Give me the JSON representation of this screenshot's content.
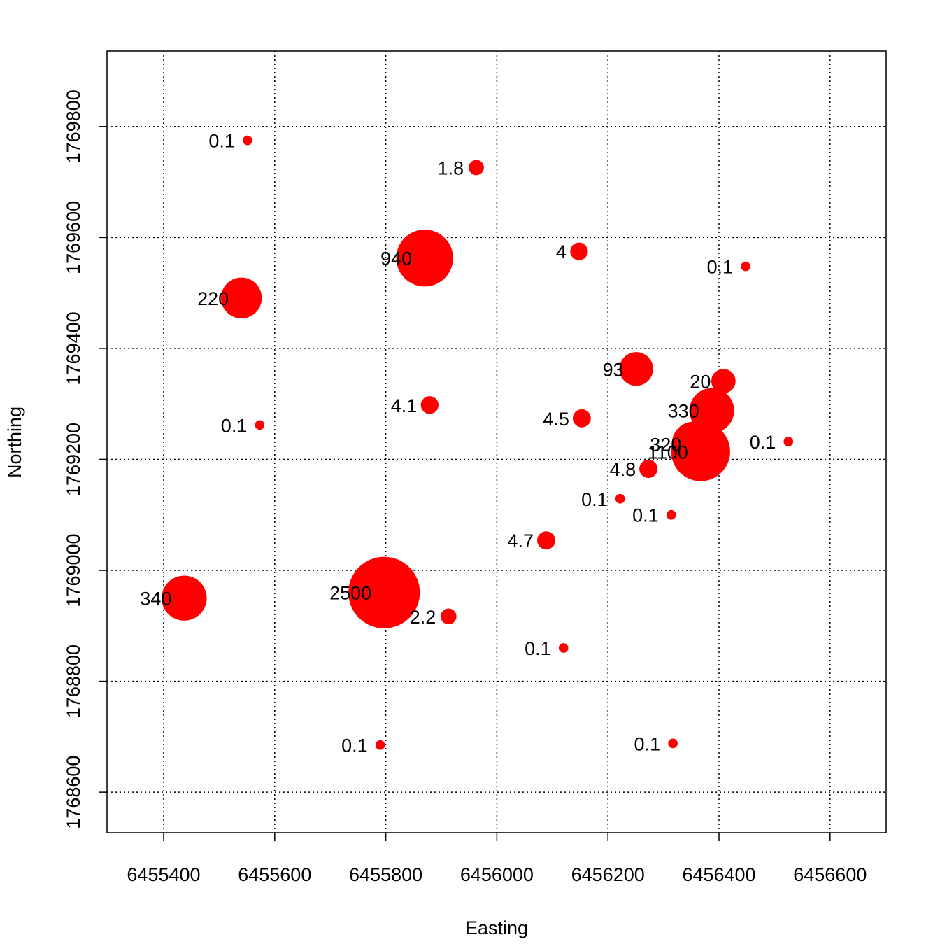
{
  "chart_data": {
    "type": "bubble",
    "x_label": "Easting",
    "y_label": "Northing",
    "x": [
      6455551,
      6455963,
      6455870,
      6456148,
      6456448,
      6455540,
      6456251,
      6456408,
      6455879,
      6455573,
      6456153,
      6456387,
      6456525,
      6456355,
      6456367,
      6456273,
      6456222,
      6456314,
      6456089,
      6455437,
      6455797,
      6455913,
      6456120,
      6455790,
      6456317
    ],
    "y": [
      1769775,
      1769726,
      1769563,
      1769575,
      1769548,
      1769491,
      1769363,
      1769341,
      1769298,
      1769262,
      1769274,
      1769288,
      1769232,
      1769228,
      1769214,
      1769183,
      1769129,
      1769100,
      1769054,
      1768950,
      1768960,
      1768917,
      1768860,
      1768685,
      1768688
    ],
    "sizes": [
      0.1,
      1.8,
      940,
      4,
      0.1,
      220,
      93,
      20,
      4.1,
      0.1,
      4.5,
      330,
      0.1,
      320,
      1100,
      4.8,
      0.1,
      0.1,
      4.7,
      340,
      2500,
      2.2,
      0.1,
      0.1,
      0.1
    ],
    "color": "#ff0000",
    "xlim": [
      6455298,
      6456701
    ],
    "ylim": [
      1768527,
      1769936
    ],
    "xticks": [
      6455400,
      6455600,
      6455800,
      6456000,
      6456200,
      6456400,
      6456600
    ],
    "yticks": [
      1768600,
      1768800,
      1769000,
      1769200,
      1769400,
      1769600,
      1769800
    ],
    "grid": true
  }
}
